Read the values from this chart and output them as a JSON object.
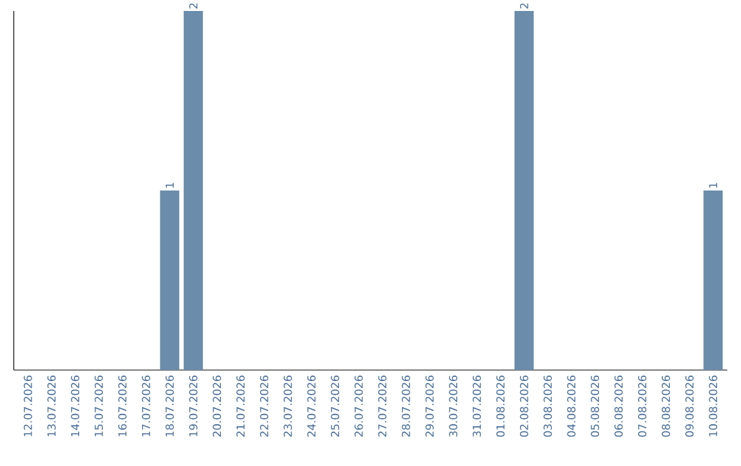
{
  "chart_data": {
    "type": "bar",
    "categories": [
      "12.07.2026",
      "13.07.2026",
      "14.07.2026",
      "15.07.2026",
      "16.07.2026",
      "17.07.2026",
      "18.07.2026",
      "19.07.2026",
      "20.07.2026",
      "21.07.2026",
      "22.07.2026",
      "23.07.2026",
      "24.07.2026",
      "25.07.2026",
      "26.07.2026",
      "27.07.2026",
      "28.07.2026",
      "29.07.2026",
      "30.07.2026",
      "31.07.2026",
      "01.08.2026",
      "02.08.2026",
      "03.08.2026",
      "04.08.2026",
      "05.08.2026",
      "06.08.2026",
      "07.08.2026",
      "08.08.2026",
      "09.08.2026",
      "10.08.2026"
    ],
    "values": [
      0,
      0,
      0,
      0,
      0,
      0,
      1,
      2,
      0,
      0,
      0,
      0,
      0,
      0,
      0,
      0,
      0,
      0,
      0,
      0,
      0,
      2,
      0,
      0,
      0,
      0,
      0,
      0,
      0,
      1
    ],
    "value_labels": [
      null,
      null,
      null,
      null,
      null,
      null,
      "1",
      "2",
      null,
      null,
      null,
      null,
      null,
      null,
      null,
      null,
      null,
      null,
      null,
      null,
      null,
      "2",
      null,
      null,
      null,
      null,
      null,
      null,
      null,
      "1"
    ],
    "color": "#6b8cab"
  }
}
